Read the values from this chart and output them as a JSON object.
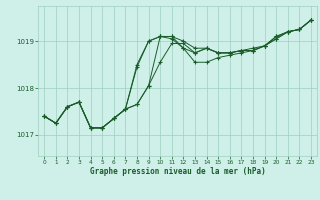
{
  "bg_color": "#cef0e8",
  "grid_color": "#9ecfbf",
  "line_color": "#1a5c2a",
  "text_color": "#1a5c2a",
  "xlabel": "Graphe pression niveau de la mer (hPa)",
  "xlim": [
    -0.5,
    23.5
  ],
  "ylim": [
    1016.55,
    1019.75
  ],
  "yticks": [
    1017,
    1018,
    1019
  ],
  "xticks": [
    0,
    1,
    2,
    3,
    4,
    5,
    6,
    7,
    8,
    9,
    10,
    11,
    12,
    13,
    14,
    15,
    16,
    17,
    18,
    19,
    20,
    21,
    22,
    23
  ],
  "series": [
    [
      1017.4,
      1017.25,
      1017.6,
      1017.7,
      1017.15,
      1017.15,
      1017.35,
      1017.55,
      1017.65,
      1018.05,
      1019.1,
      1019.1,
      1019.0,
      1018.85,
      1018.85,
      1018.75,
      1018.75,
      1018.8,
      1018.85,
      1018.9,
      1019.1,
      1019.2,
      1019.25,
      1019.45
    ],
    [
      1017.4,
      1017.25,
      1017.6,
      1017.7,
      1017.15,
      1017.15,
      1017.35,
      1017.55,
      1017.65,
      1018.05,
      1018.55,
      1018.95,
      1018.95,
      1018.75,
      1018.85,
      1018.75,
      1018.75,
      1018.8,
      1018.8,
      1018.9,
      1019.1,
      1019.2,
      1019.25,
      1019.45
    ],
    [
      1017.4,
      1017.25,
      1017.6,
      1017.7,
      1017.15,
      1017.15,
      1017.35,
      1017.55,
      1018.5,
      1019.0,
      1019.1,
      1019.1,
      1018.85,
      1018.55,
      1018.55,
      1018.65,
      1018.7,
      1018.75,
      1018.8,
      1018.9,
      1019.05,
      1019.2,
      1019.25,
      1019.45
    ],
    [
      1017.4,
      1017.25,
      1017.6,
      1017.7,
      1017.15,
      1017.15,
      1017.35,
      1017.55,
      1018.45,
      1019.0,
      1019.1,
      1019.05,
      1018.85,
      1018.75,
      1018.85,
      1018.75,
      1018.75,
      1018.8,
      1018.8,
      1018.9,
      1019.05,
      1019.2,
      1019.25,
      1019.45
    ]
  ]
}
